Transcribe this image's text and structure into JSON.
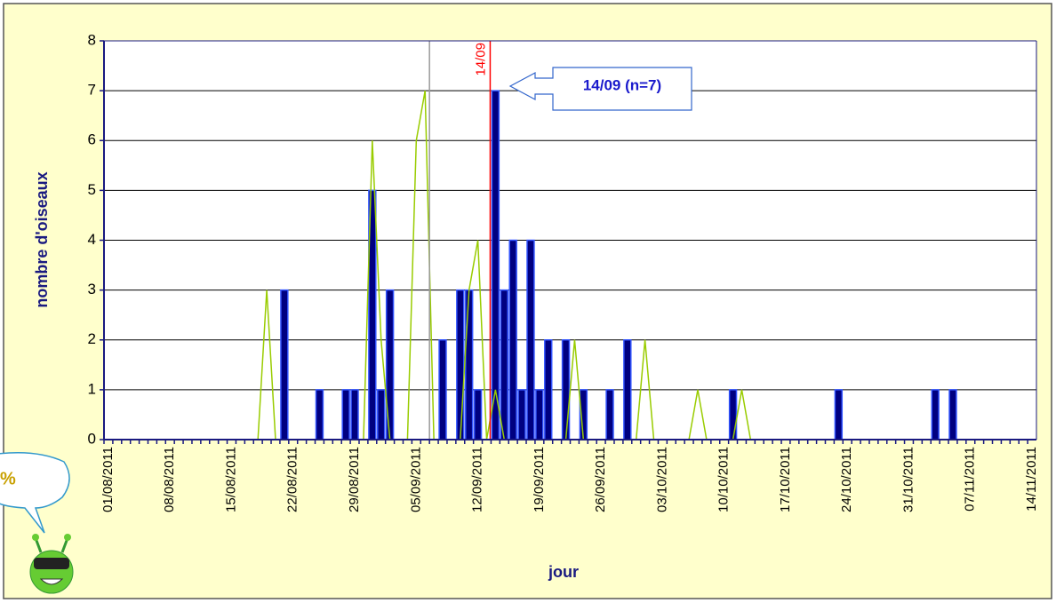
{
  "chart_data": {
    "type": "bar-line",
    "x_label": "jour",
    "y_label": "nombre d'oiseaux",
    "categories": [
      "01/08/2011",
      null,
      null,
      null,
      null,
      null,
      null,
      "08/08/2011",
      null,
      null,
      null,
      null,
      null,
      null,
      "15/08/2011",
      null,
      null,
      null,
      null,
      null,
      null,
      "22/08/2011",
      null,
      null,
      null,
      null,
      null,
      null,
      "29/08/2011",
      null,
      null,
      null,
      null,
      null,
      null,
      "05/09/2011",
      null,
      null,
      null,
      null,
      null,
      null,
      "12/09/2011",
      null,
      null,
      null,
      null,
      null,
      null,
      "19/09/2011",
      null,
      null,
      null,
      null,
      null,
      null,
      "26/09/2011",
      null,
      null,
      null,
      null,
      null,
      null,
      "03/10/2011",
      null,
      null,
      null,
      null,
      null,
      null,
      "10/10/2011",
      null,
      null,
      null,
      null,
      null,
      null,
      "17/10/2011",
      null,
      null,
      null,
      null,
      null,
      null,
      "24/10/2011",
      null,
      null,
      null,
      null,
      null,
      null,
      "31/10/2011",
      null,
      null,
      null,
      null,
      null,
      null,
      "07/11/2011",
      null,
      null,
      null,
      null,
      null,
      null,
      "14/11/2011"
    ],
    "series": [
      {
        "kind": "bar",
        "color": "#000080",
        "stroke": "#3355ff",
        "values": [
          0,
          0,
          0,
          0,
          0,
          0,
          0,
          0,
          0,
          0,
          0,
          0,
          0,
          0,
          0,
          0,
          0,
          0,
          0,
          0,
          3,
          0,
          0,
          0,
          1,
          0,
          0,
          1,
          1,
          0,
          5,
          1,
          3,
          0,
          0,
          0,
          0,
          0,
          2,
          0,
          3,
          3,
          1,
          0,
          7,
          3,
          4,
          1,
          4,
          1,
          2,
          0,
          2,
          0,
          1,
          0,
          0,
          1,
          0,
          2,
          0,
          0,
          0,
          0,
          0,
          0,
          0,
          0,
          0,
          0,
          0,
          1,
          0,
          0,
          0,
          0,
          0,
          0,
          0,
          0,
          0,
          0,
          0,
          1,
          0,
          0,
          0,
          0,
          0,
          0,
          0,
          0,
          0,
          0,
          1,
          0,
          1,
          0,
          0,
          0,
          0,
          0,
          0,
          0,
          0,
          0
        ]
      },
      {
        "kind": "line",
        "color": "#99cc00",
        "values": [
          0,
          0,
          0,
          0,
          0,
          0,
          0,
          0,
          0,
          0,
          0,
          0,
          0,
          0,
          0,
          0,
          0,
          0,
          3,
          0,
          0,
          0,
          0,
          0,
          0,
          0,
          0,
          0,
          0,
          0,
          6,
          2,
          0,
          0,
          0,
          6,
          7,
          0,
          0,
          0,
          0,
          3,
          4,
          0,
          1,
          0,
          0,
          0,
          0,
          0,
          0,
          0,
          0,
          2,
          0,
          0,
          0,
          0,
          0,
          0,
          0,
          2,
          0,
          0,
          0,
          0,
          0,
          1,
          0,
          0,
          0,
          0,
          1,
          0,
          0,
          0,
          0,
          0,
          0,
          0,
          0,
          0,
          0,
          0,
          0,
          0,
          0,
          0,
          0,
          0,
          0,
          0,
          0,
          0,
          0,
          0,
          0,
          0,
          0,
          0,
          0,
          0,
          0,
          0,
          0,
          0
        ]
      }
    ],
    "ylim": [
      0,
      8
    ],
    "yticks": [
      0,
      1,
      2,
      3,
      4,
      5,
      6,
      7,
      8
    ],
    "grid": true,
    "vlines": [
      {
        "x": 36.5,
        "color": "#999999"
      },
      {
        "x": 43.4,
        "color": "#ff0000",
        "label": "14/09"
      }
    ],
    "callout": "14/09 (n=7)",
    "bubble_text": "%"
  }
}
